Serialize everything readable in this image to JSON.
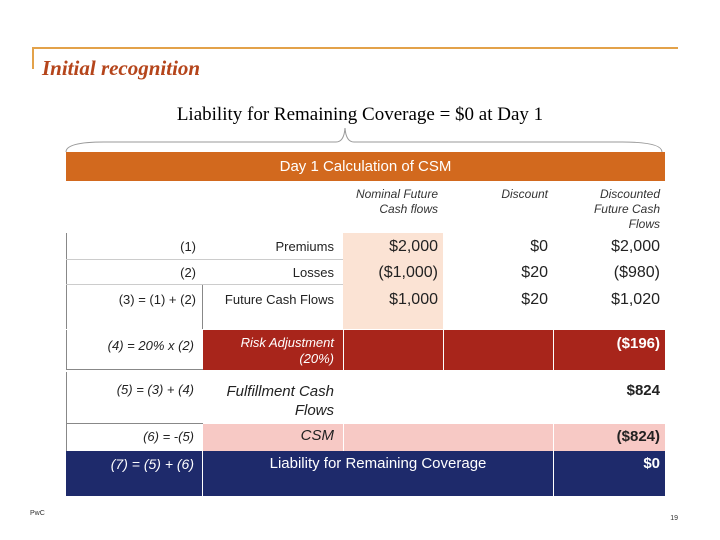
{
  "title": "Initial recognition",
  "subtitle": "Liability for Remaining Coverage = $0 at Day 1",
  "banner": "Day 1 Calculation of CSM",
  "headers": {
    "nominal": "Nominal Future Cash flows",
    "discount": "Discount",
    "discounted": "Discounted Future Cash Flows"
  },
  "rows": [
    {
      "ref": "(1)",
      "label": "Premiums",
      "nominal": "$2,000",
      "discount": "$0",
      "discounted": "$2,000"
    },
    {
      "ref": "(2)",
      "label": "Losses",
      "nominal": "($1,000)",
      "discount": "$20",
      "discounted": "($980)"
    },
    {
      "ref": "(3) = (1) + (2)",
      "label": "Future Cash Flows",
      "nominal": "$1,000",
      "discount": "$20",
      "discounted": "$1,020"
    }
  ],
  "risk": {
    "ref": "(4) = 20% x (2)",
    "label": "Risk Adjustment (20%)",
    "value": "($196)"
  },
  "fulfillment": {
    "ref": "(5) = (3) + (4)",
    "label": "Fulfillment Cash Flows",
    "value": "$824"
  },
  "csm": {
    "ref": "(6) = -(5)",
    "label": "CSM",
    "value": "($824)"
  },
  "lrc": {
    "ref": "(7) = (5) + (6)",
    "label": "Liability for Remaining Coverage",
    "value": "$0"
  },
  "footer": {
    "left": "PwC",
    "page": "19"
  },
  "colors": {
    "accent": "#d2691e",
    "title": "#b5451b",
    "risk": "#a8251b",
    "csm": "#f7c9c5",
    "lrc": "#1e2a6b",
    "peach": "#fbe3d4"
  }
}
